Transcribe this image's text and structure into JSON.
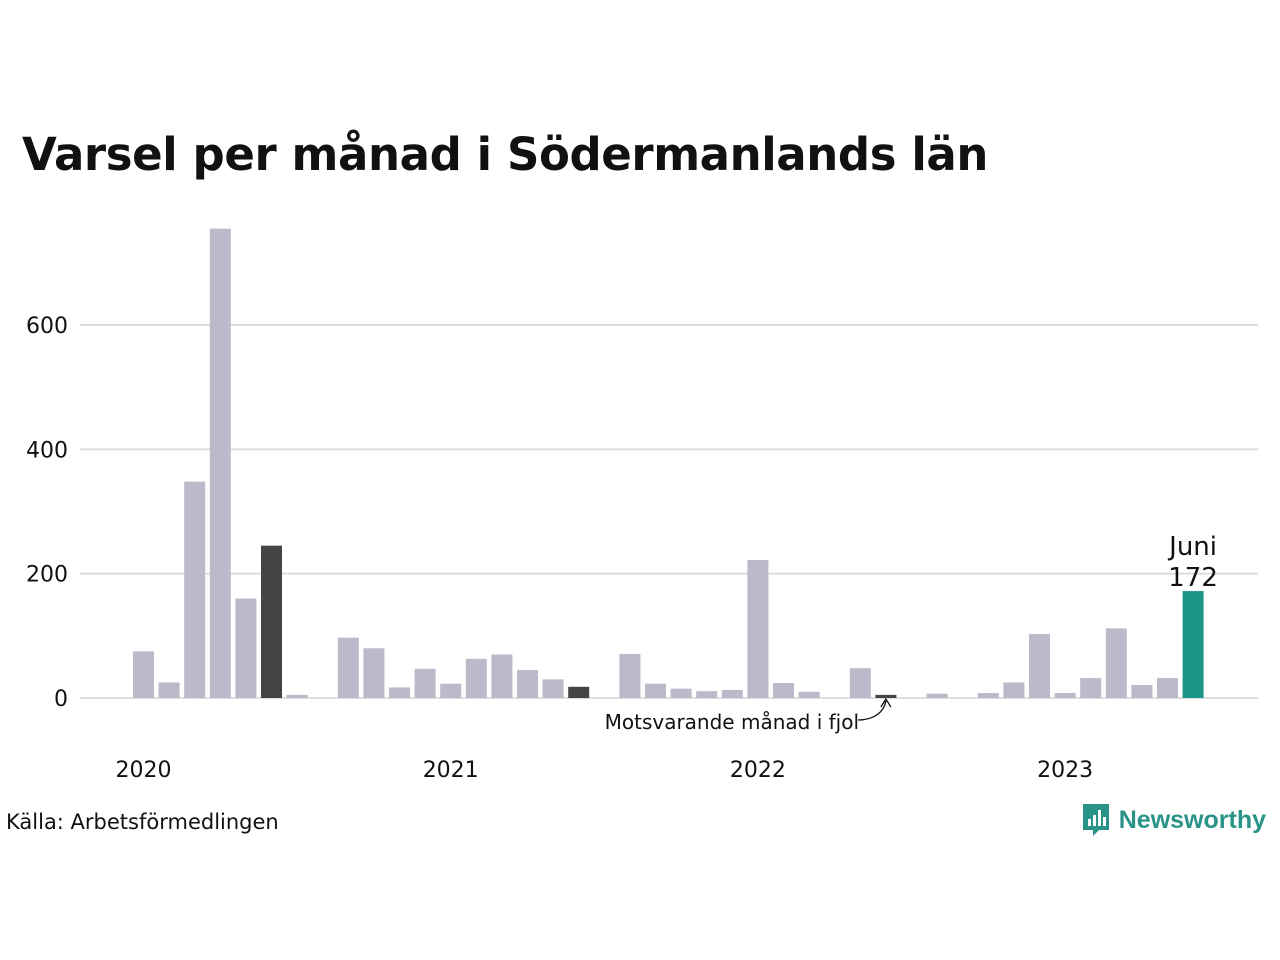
{
  "title": "Varsel per månad i Södermanlands län",
  "source": "Källa: Arbetsförmedlingen",
  "brand": {
    "name": "Newsworthy",
    "icon": "newsworthy-logo-icon",
    "color": "#2a9387"
  },
  "colors": {
    "bar": "#bcbaca",
    "same_month_last_year": "#444444",
    "current": "#1a9587",
    "grid": "#dddddd"
  },
  "chart_data": {
    "type": "bar",
    "title": "Varsel per månad i Södermanlands län",
    "ylim": [
      0,
      800
    ],
    "yticks": [
      0,
      200,
      400,
      600
    ],
    "grid": true,
    "x": [
      "2020-01",
      "2020-02",
      "2020-03",
      "2020-04",
      "2020-05",
      "2020-06",
      "2020-07",
      "2020-08",
      "2020-09",
      "2020-10",
      "2020-11",
      "2020-12",
      "2021-01",
      "2021-02",
      "2021-03",
      "2021-04",
      "2021-05",
      "2021-06",
      "2021-07",
      "2021-08",
      "2021-09",
      "2021-10",
      "2021-11",
      "2021-12",
      "2022-01",
      "2022-02",
      "2022-03",
      "2022-04",
      "2022-05",
      "2022-06",
      "2022-07",
      "2022-08",
      "2022-09",
      "2022-10",
      "2022-11",
      "2022-12",
      "2023-01",
      "2023-02",
      "2023-03",
      "2023-04",
      "2023-05",
      "2023-06"
    ],
    "values": [
      75,
      25,
      348,
      755,
      160,
      245,
      5,
      0,
      97,
      80,
      17,
      47,
      23,
      63,
      70,
      45,
      30,
      18,
      0,
      71,
      23,
      15,
      11,
      13,
      222,
      24,
      10,
      0,
      48,
      5,
      0,
      7,
      0,
      8,
      25,
      103,
      8,
      32,
      112,
      21,
      32,
      172
    ],
    "same_month_last_year_indices": [
      5,
      17,
      29
    ],
    "current_index": 41,
    "year_labels": [
      {
        "label": "2020",
        "index": 0
      },
      {
        "label": "2021",
        "index": 12
      },
      {
        "label": "2022",
        "index": 24
      },
      {
        "label": "2023",
        "index": 36
      }
    ],
    "annotation": {
      "text": "Motsvarande månad i fjol",
      "index": 29
    },
    "highlight": {
      "month": "Juni",
      "value": "172"
    }
  }
}
